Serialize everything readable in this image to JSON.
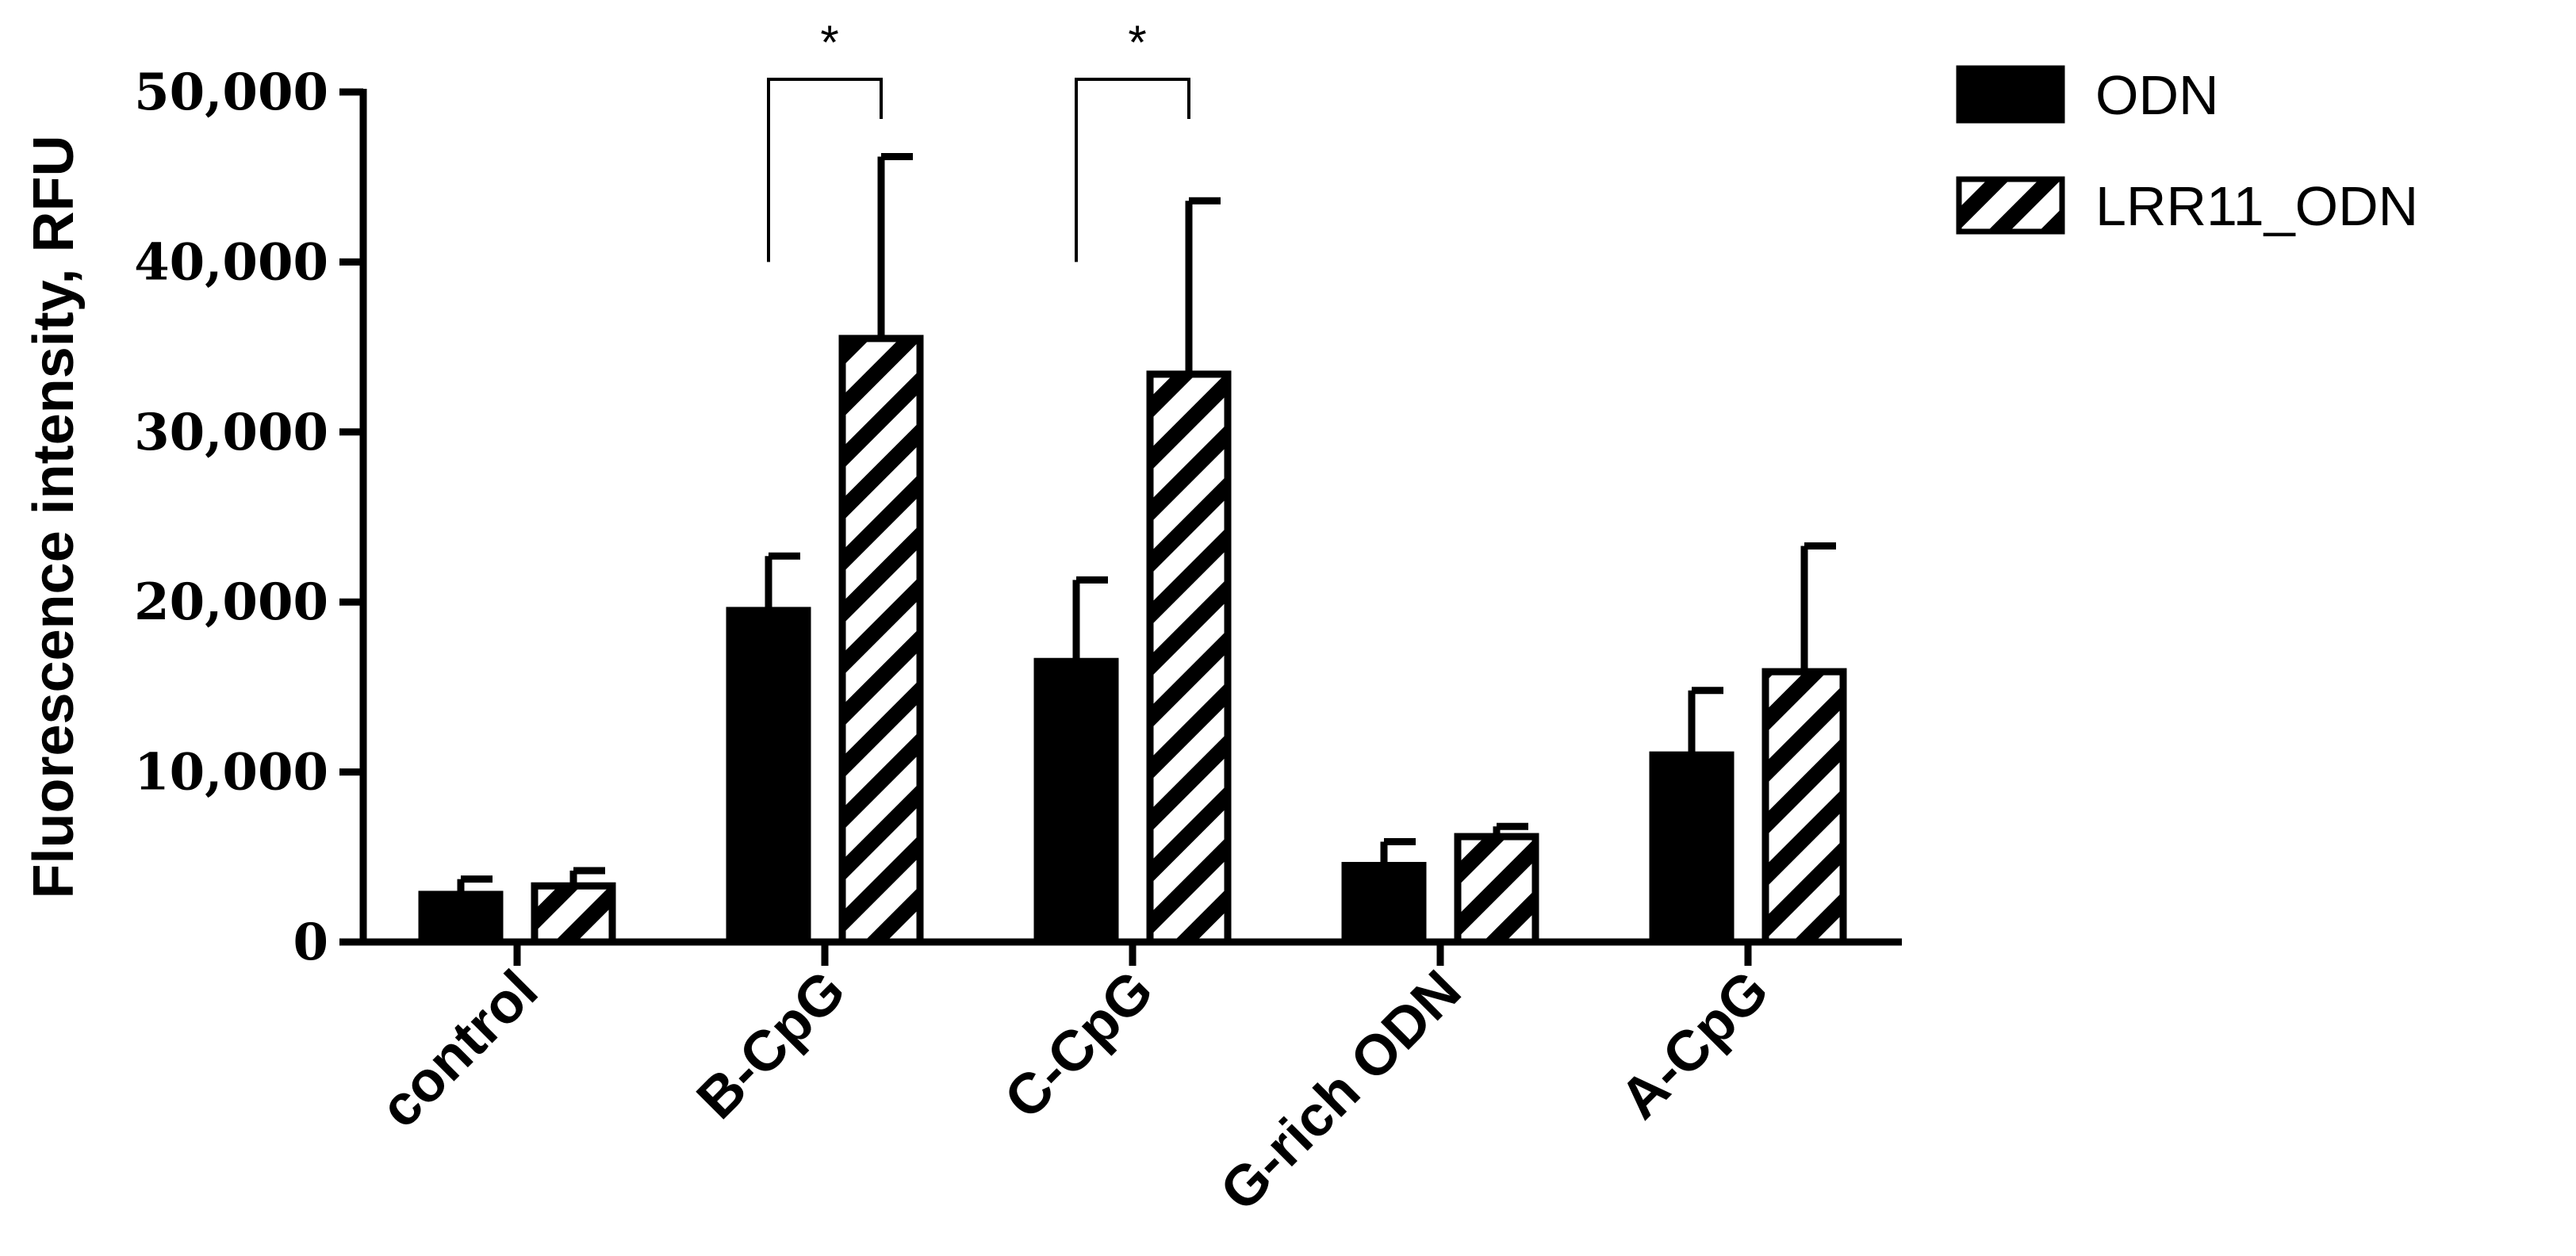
{
  "chart_data": {
    "type": "bar",
    "title": "",
    "xlabel": "",
    "ylabel": "Fluorescence intensity, RFU",
    "ylim": [
      0,
      50000
    ],
    "yticks": [
      0,
      10000,
      20000,
      30000,
      40000,
      50000
    ],
    "ytick_labels": [
      "0",
      "10,000",
      "20,000",
      "30,000",
      "40,000",
      "50,000"
    ],
    "categories": [
      "control",
      "B-CpG",
      "C-CpG",
      "G-rich ODN",
      "A-CpG"
    ],
    "series": [
      {
        "name": "ODN",
        "fill": "solid",
        "color": "#000000",
        "values": [
          2800,
          19500,
          16500,
          4500,
          11000
        ],
        "errors": [
          900,
          3200,
          4800,
          1400,
          3800
        ]
      },
      {
        "name": "LRR11_ODN",
        "fill": "hatched",
        "color": "#000000",
        "values": [
          3300,
          35500,
          33400,
          6200,
          15900
        ],
        "errors": [
          900,
          10700,
          10200,
          600,
          7400
        ]
      }
    ],
    "significance": [
      {
        "category": "B-CpG",
        "label": "*"
      },
      {
        "category": "C-CpG",
        "label": "*"
      }
    ],
    "legend_position": "top-right",
    "grid": false
  }
}
